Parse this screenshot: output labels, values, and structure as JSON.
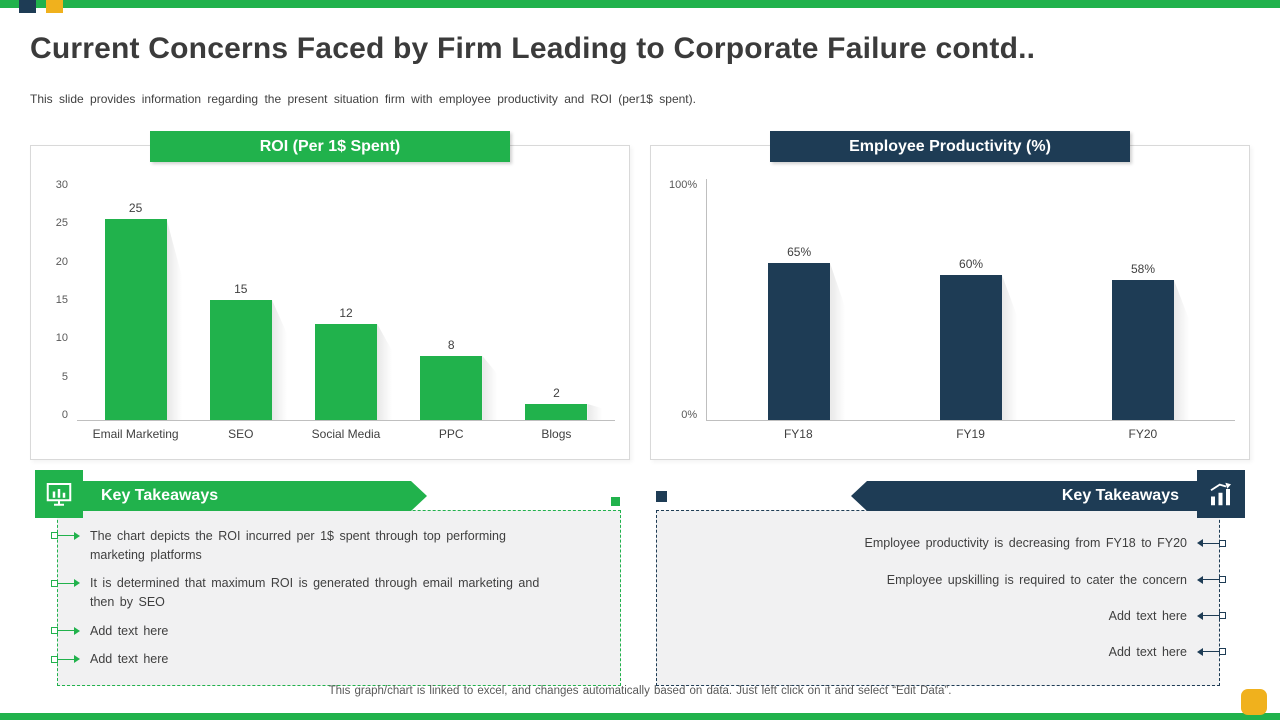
{
  "slide": {
    "title": "Current Concerns Faced by Firm Leading to Corporate Failure contd..",
    "subtitle": "This slide provides information regarding the present situation firm with employee productivity and ROI (per1$ spent).",
    "footer": "This graph/chart is linked to excel, and changes automatically based on data. Just left click on it and select “Edit Data”."
  },
  "colors": {
    "green": "#21B24C",
    "navy": "#1E3C55",
    "yellow": "#F0B11D",
    "panel_border": "#D9D9D9",
    "takeaway_bg": "#F1F1F2"
  },
  "chart_data": [
    {
      "type": "bar",
      "title": "ROI (Per 1$ Spent)",
      "categories": [
        "Email Marketing",
        "SEO",
        "Social Media",
        "PPC",
        "Blogs"
      ],
      "values": [
        25,
        15,
        12,
        8,
        2
      ],
      "data_labels": [
        "25",
        "15",
        "12",
        "8",
        "2"
      ],
      "yticks": [
        "30",
        "25",
        "20",
        "15",
        "10",
        "5",
        "0"
      ],
      "ylim": [
        0,
        30
      ],
      "xlabel": "",
      "ylabel": "",
      "grid": false,
      "legend": false,
      "bar_color": "#21B24C"
    },
    {
      "type": "bar",
      "title": "Employee Productivity (%)",
      "categories": [
        "FY18",
        "FY19",
        "FY20"
      ],
      "values": [
        65,
        60,
        58
      ],
      "data_labels": [
        "65%",
        "60%",
        "58%"
      ],
      "yticks": [
        "100%",
        "0%"
      ],
      "ylim": [
        0,
        100
      ],
      "xlabel": "",
      "ylabel": "",
      "grid": false,
      "legend": false,
      "bar_color": "#1E3C55"
    }
  ],
  "left_takeaways": {
    "heading": "Key Takeaways",
    "items": [
      "The chart depicts the ROI incurred per 1$ spent through top performing marketing platforms",
      "It is determined that maximum ROI is generated through email marketing and then by SEO",
      "Add text here",
      "Add text here"
    ]
  },
  "right_takeaways": {
    "heading": "Key Takeaways",
    "items": [
      "Employee productivity is decreasing from FY18 to FY20",
      "Employee upskilling is required to cater the concern",
      "Add text here",
      "Add text here"
    ]
  }
}
